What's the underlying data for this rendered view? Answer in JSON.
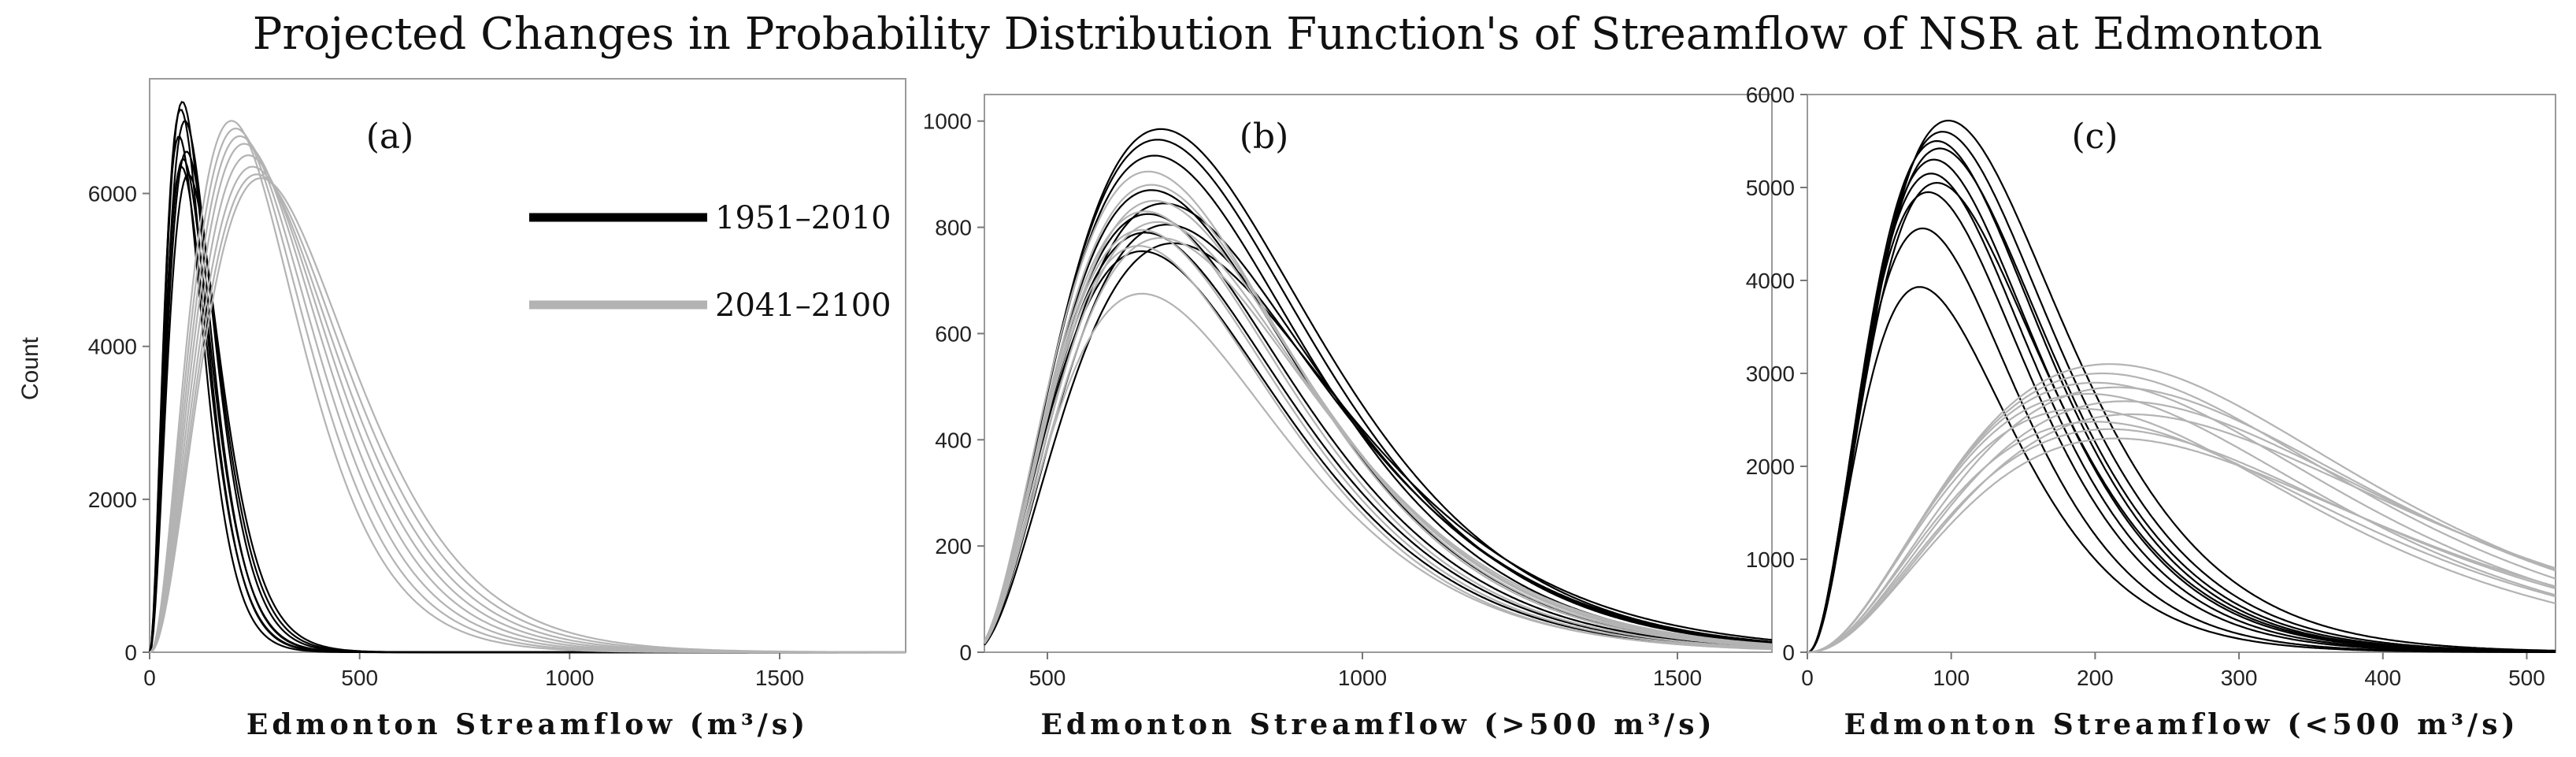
{
  "figure_title": "Projected Changes in Probability Distribution Function's of Streamflow of NSR at Edmonton",
  "legend": [
    {
      "label": "1951–2010",
      "color": "#000000"
    },
    {
      "label": "2041–2100",
      "color": "#b3b3b3"
    }
  ],
  "chart_data": [
    {
      "type": "line",
      "panel_label": "(a)",
      "xlabel": "Edmonton Streamflow (m³/s)",
      "ylabel": "Count",
      "xlim": [
        0,
        1800
      ],
      "ylim": [
        0,
        7500
      ],
      "x_ticks": [
        0,
        500,
        1000,
        1500
      ],
      "y_ticks": [
        0,
        2000,
        4000,
        6000
      ],
      "series": [
        {
          "name": "1951–2010",
          "color": "#000000",
          "curves": [
            {
              "mode": 78,
              "peak": 7200
            },
            {
              "mode": 74,
              "peak": 7100
            },
            {
              "mode": 84,
              "peak": 6950
            },
            {
              "mode": 70,
              "peak": 6750
            },
            {
              "mode": 88,
              "peak": 6550
            },
            {
              "mode": 80,
              "peak": 6450
            },
            {
              "mode": 76,
              "peak": 6350
            },
            {
              "mode": 92,
              "peak": 6250
            }
          ]
        },
        {
          "name": "2041–2100",
          "color": "#b3b3b3",
          "curves": [
            {
              "mode": 195,
              "peak": 6950
            },
            {
              "mode": 205,
              "peak": 6850
            },
            {
              "mode": 215,
              "peak": 6750
            },
            {
              "mode": 225,
              "peak": 6650
            },
            {
              "mode": 235,
              "peak": 6500
            },
            {
              "mode": 245,
              "peak": 6350
            },
            {
              "mode": 255,
              "peak": 6250
            },
            {
              "mode": 265,
              "peak": 6200
            }
          ]
        }
      ]
    },
    {
      "type": "line",
      "panel_label": "(b)",
      "xlabel": "Edmonton Streamflow (>500 m³/s)",
      "ylabel": "",
      "xlim": [
        400,
        1650
      ],
      "ylim": [
        0,
        1050
      ],
      "x_ticks": [
        500,
        1000,
        1500
      ],
      "y_ticks": [
        0,
        200,
        400,
        600,
        800,
        1000
      ],
      "series": [
        {
          "name": "1951–2010",
          "color": "#000000",
          "curves": [
            {
              "mode": 680,
              "peak": 985
            },
            {
              "mode": 675,
              "peak": 965
            },
            {
              "mode": 670,
              "peak": 935
            },
            {
              "mode": 665,
              "peak": 870
            },
            {
              "mode": 685,
              "peak": 845
            },
            {
              "mode": 660,
              "peak": 825
            },
            {
              "mode": 690,
              "peak": 805
            },
            {
              "mode": 655,
              "peak": 790
            },
            {
              "mode": 700,
              "peak": 770
            },
            {
              "mode": 650,
              "peak": 755
            }
          ]
        },
        {
          "name": "2041–2100",
          "color": "#b3b3b3",
          "curves": [
            {
              "mode": 660,
              "peak": 905
            },
            {
              "mode": 665,
              "peak": 880
            },
            {
              "mode": 670,
              "peak": 850
            },
            {
              "mode": 655,
              "peak": 830
            },
            {
              "mode": 675,
              "peak": 810
            },
            {
              "mode": 650,
              "peak": 795
            },
            {
              "mode": 680,
              "peak": 780
            },
            {
              "mode": 645,
              "peak": 765
            },
            {
              "mode": 650,
              "peak": 675
            }
          ]
        }
      ]
    },
    {
      "type": "line",
      "panel_label": "(c)",
      "xlabel": "Edmonton Streamflow (<500 m³/s)",
      "ylabel": "",
      "xlim": [
        0,
        520
      ],
      "ylim": [
        0,
        6000
      ],
      "x_ticks": [
        0,
        100,
        200,
        300,
        400,
        500
      ],
      "y_ticks": [
        0,
        1000,
        2000,
        3000,
        4000,
        5000,
        6000
      ],
      "series": [
        {
          "name": "1951–2010",
          "color": "#000000",
          "curves": [
            {
              "mode": 98,
              "peak": 5720
            },
            {
              "mode": 94,
              "peak": 5600
            },
            {
              "mode": 90,
              "peak": 5500
            },
            {
              "mode": 92,
              "peak": 5420
            },
            {
              "mode": 88,
              "peak": 5300
            },
            {
              "mode": 86,
              "peak": 5150
            },
            {
              "mode": 90,
              "peak": 5050
            },
            {
              "mode": 84,
              "peak": 4950
            },
            {
              "mode": 80,
              "peak": 4560
            },
            {
              "mode": 78,
              "peak": 3930
            }
          ]
        },
        {
          "name": "2041–2100",
          "color": "#b3b3b3",
          "curves": [
            {
              "mode": 210,
              "peak": 3100
            },
            {
              "mode": 205,
              "peak": 3000
            },
            {
              "mode": 200,
              "peak": 2900
            },
            {
              "mode": 215,
              "peak": 2850
            },
            {
              "mode": 195,
              "peak": 2780
            },
            {
              "mode": 220,
              "peak": 2700
            },
            {
              "mode": 190,
              "peak": 2620
            },
            {
              "mode": 225,
              "peak": 2560
            },
            {
              "mode": 200,
              "peak": 2480
            },
            {
              "mode": 210,
              "peak": 2400
            },
            {
              "mode": 215,
              "peak": 2300
            }
          ]
        }
      ]
    }
  ]
}
